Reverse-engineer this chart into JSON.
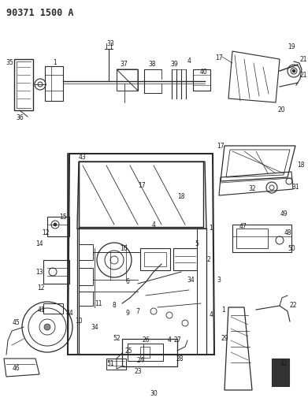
{
  "title": "90371 1500 A",
  "bg_color": "#ffffff",
  "line_color": "#2a2a2a",
  "label_color": "#1a1a1a",
  "figsize": [
    3.91,
    5.33
  ],
  "dpi": 100,
  "label_fs": 5.5,
  "title_fs": 8.5
}
